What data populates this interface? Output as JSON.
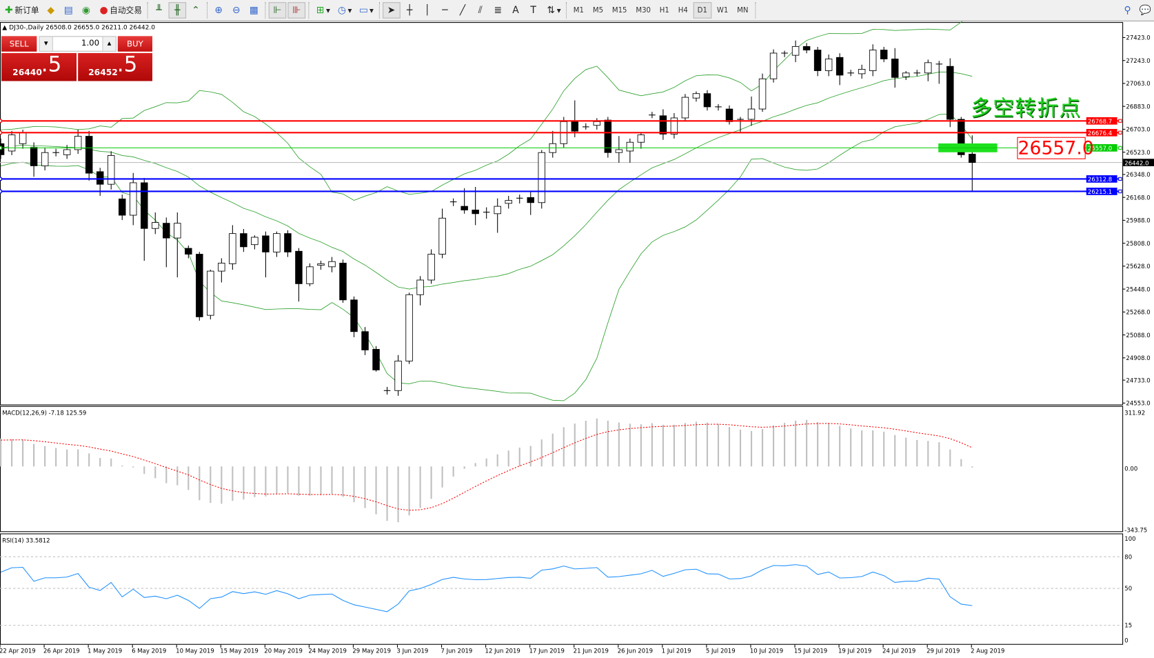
{
  "toolbar": {
    "new_order": "新订单",
    "auto_trading": "自动交易",
    "timeframes": [
      "M1",
      "M5",
      "M15",
      "M30",
      "H1",
      "H4",
      "D1",
      "W1",
      "MN"
    ],
    "active_timeframe": "D1"
  },
  "header": {
    "symbol_info": "DJ30-,Daily  26508.0 26655.0 26211.0 26442.0"
  },
  "trade_panel": {
    "sell_label": "SELL",
    "buy_label": "BUY",
    "lot": "1.00",
    "sell_big": "26440",
    "sell_small": ".5",
    "buy_big": "26452",
    "buy_small": ".5"
  },
  "annotation": {
    "text": "多空转折点",
    "price_box": "26557.0"
  },
  "colors": {
    "bull_body": "#ffffff",
    "bear_body": "#000000",
    "bands": "#2ca02c",
    "resistance": "#ff0000",
    "pivot": "#00cc00",
    "support": "#0000ff",
    "macd_hist": "#c0c0c0",
    "macd_signal": "#ff0000",
    "rsi": "#1e90ff"
  },
  "chart_data": [
    {
      "type": "candlestick",
      "title": "DJ30-,Daily",
      "indicator": "Bollinger Bands",
      "x": [
        "22 Apr 2019",
        "26 Apr 2019",
        "1 May 2019",
        "6 May 2019",
        "10 May 2019",
        "15 May 2019",
        "20 May 2019",
        "24 May 2019",
        "29 May 2019",
        "3 Jun 2019",
        "7 Jun 2019",
        "12 Jun 2019",
        "17 Jun 2019",
        "21 Jun 2019",
        "26 Jun 2019",
        "1 Jul 2019",
        "5 Jul 2019",
        "10 Jul 2019",
        "15 Jul 2019",
        "19 Jul 2019",
        "24 Jul 2019",
        "29 Jul 2019",
        "2 Aug 2019"
      ],
      "y_ticks": [
        "27423.0",
        "27243.0",
        "27063.0",
        "26883.0",
        "26703.0",
        "26523.0",
        "26348.0",
        "26168.0",
        "25988.0",
        "25808.0",
        "25628.0",
        "25448.0",
        "25268.0",
        "25088.0",
        "24908.0",
        "24733.0",
        "24553.0"
      ],
      "ylim": [
        24553,
        27423
      ],
      "ohlc": [
        [
          26590,
          26630,
          26470,
          26503
        ],
        [
          26532,
          26690,
          26500,
          26659
        ],
        [
          26590,
          26700,
          26550,
          26676
        ],
        [
          26561,
          26600,
          26330,
          26416
        ],
        [
          26416,
          26560,
          26380,
          26520
        ],
        [
          26515,
          26550,
          26490,
          26520
        ],
        [
          26503,
          26580,
          26470,
          26543
        ],
        [
          26543,
          26700,
          26510,
          26648
        ],
        [
          26648,
          26690,
          26300,
          26358
        ],
        [
          26370,
          26400,
          26180,
          26271
        ],
        [
          26271,
          26530,
          26230,
          26497
        ],
        [
          26156,
          26190,
          25990,
          26028
        ],
        [
          26028,
          26360,
          25950,
          26283
        ],
        [
          26283,
          26320,
          25670,
          25924
        ],
        [
          25924,
          26050,
          25880,
          25971
        ],
        [
          25965,
          26010,
          25620,
          25849
        ],
        [
          25849,
          26050,
          25540,
          25965
        ],
        [
          25768,
          25790,
          25690,
          25722
        ],
        [
          25722,
          25740,
          25200,
          25230
        ],
        [
          25242,
          25600,
          25210,
          25589
        ],
        [
          25589,
          25690,
          25500,
          25652
        ],
        [
          25647,
          25950,
          25600,
          25884
        ],
        [
          25884,
          25920,
          25740,
          25780
        ],
        [
          25797,
          25870,
          25760,
          25855
        ],
        [
          25866,
          25900,
          25540,
          25739
        ],
        [
          25739,
          25900,
          25700,
          25884
        ],
        [
          25884,
          25910,
          25700,
          25739
        ],
        [
          25745,
          25770,
          25350,
          25490
        ],
        [
          25490,
          25650,
          25470,
          25623
        ],
        [
          25635,
          25670,
          25600,
          25647
        ],
        [
          25623,
          25700,
          25580,
          25664
        ],
        [
          25652,
          25680,
          25340,
          25363
        ],
        [
          25363,
          25390,
          25070,
          25114
        ],
        [
          25114,
          25150,
          24930,
          24970
        ],
        [
          24975,
          25000,
          24800,
          24813
        ],
        [
          24651,
          24680,
          24620,
          24645
        ],
        [
          24651,
          24930,
          24610,
          24883
        ],
        [
          24883,
          25420,
          24860,
          25404
        ],
        [
          25404,
          25550,
          25320,
          25519
        ],
        [
          25519,
          25760,
          25490,
          25722
        ],
        [
          25722,
          26080,
          25690,
          26005
        ],
        [
          26127,
          26160,
          26100,
          26133
        ],
        [
          26098,
          26240,
          26040,
          26069
        ],
        [
          26069,
          26250,
          25950,
          26040
        ],
        [
          26052,
          26090,
          26000,
          26046
        ],
        [
          26040,
          26160,
          25890,
          26098
        ],
        [
          26121,
          26180,
          26080,
          26144
        ],
        [
          26162,
          26190,
          26120,
          26156
        ],
        [
          26167,
          26210,
          26030,
          26127
        ],
        [
          26127,
          26540,
          26080,
          26520
        ],
        [
          26520,
          26690,
          26480,
          26590
        ],
        [
          26590,
          26800,
          26560,
          26763
        ],
        [
          26763,
          26930,
          26640,
          26688
        ],
        [
          26722,
          26750,
          26700,
          26722
        ],
        [
          26734,
          26790,
          26700,
          26763
        ],
        [
          26775,
          26800,
          26480,
          26520
        ],
        [
          26520,
          26650,
          26440,
          26543
        ],
        [
          26532,
          26630,
          26440,
          26601
        ],
        [
          26601,
          26680,
          26550,
          26659
        ],
        [
          26815,
          26840,
          26790,
          26809
        ],
        [
          26809,
          26860,
          26620,
          26665
        ],
        [
          26665,
          26830,
          26630,
          26792
        ],
        [
          26792,
          26980,
          26770,
          26954
        ],
        [
          26948,
          27000,
          26920,
          26983
        ],
        [
          26983,
          27010,
          26850,
          26879
        ],
        [
          26879,
          26900,
          26850,
          26873
        ],
        [
          26862,
          26890,
          26740,
          26763
        ],
        [
          26781,
          26800,
          26680,
          26775
        ],
        [
          26781,
          26960,
          26730,
          26862
        ],
        [
          26862,
          27140,
          26840,
          27099
        ],
        [
          27099,
          27330,
          27070,
          27301
        ],
        [
          27301,
          27320,
          27270,
          27295
        ],
        [
          27284,
          27400,
          27230,
          27353
        ],
        [
          27353,
          27380,
          27300,
          27325
        ],
        [
          27325,
          27350,
          27120,
          27163
        ],
        [
          27163,
          27290,
          27120,
          27255
        ],
        [
          27267,
          27300,
          27050,
          27128
        ],
        [
          27145,
          27170,
          27120,
          27139
        ],
        [
          27139,
          27210,
          27100,
          27174
        ],
        [
          27163,
          27370,
          27120,
          27325
        ],
        [
          27325,
          27350,
          27230,
          27255
        ],
        [
          27255,
          27340,
          27030,
          27110
        ],
        [
          27116,
          27160,
          27090,
          27145
        ],
        [
          27145,
          27170,
          27120,
          27145
        ],
        [
          27145,
          27250,
          27080,
          27226
        ],
        [
          27215,
          27240,
          27060,
          27209
        ],
        [
          27197,
          27260,
          26720,
          26781
        ],
        [
          26781,
          26800,
          26480,
          26503
        ],
        [
          26508,
          26655,
          26211,
          26442
        ]
      ],
      "levels": [
        {
          "value": "26768.7",
          "color": "#ff0000"
        },
        {
          "value": "26676.4",
          "color": "#ff0000"
        },
        {
          "value": "26557.0",
          "color": "#00cc00"
        },
        {
          "value": "26312.8",
          "color": "#0000ff"
        },
        {
          "value": "26215.1",
          "color": "#0000ff"
        }
      ],
      "bid": "26442.0"
    },
    {
      "type": "bar+line",
      "title": "MACD(12,26,9) -7.18 125.59",
      "y_ticks": [
        "311.92",
        "0.00",
        "-343.75"
      ],
      "ylim": [
        -343.75,
        311.92
      ]
    },
    {
      "type": "line",
      "title": "RSI(14) 33.5812",
      "y_ticks": [
        "100",
        "80",
        "50",
        "15",
        "0"
      ],
      "ylim": [
        0,
        100
      ],
      "levels": [
        80,
        50,
        15
      ]
    }
  ]
}
